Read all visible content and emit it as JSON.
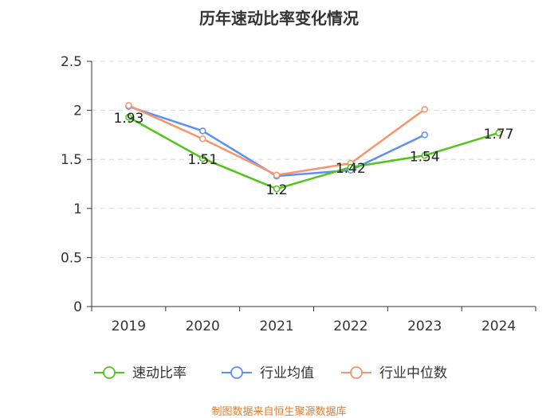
{
  "chart_data": {
    "type": "line",
    "title": "历年速动比率变化情况",
    "categories": [
      "2019",
      "2020",
      "2021",
      "2022",
      "2023",
      "2024"
    ],
    "ylim": [
      0,
      2.5
    ],
    "yticks": [
      "0",
      "0.5",
      "1",
      "1.5",
      "2",
      "2.5"
    ],
    "grid": true,
    "legend_position": "bottom",
    "series": [
      {
        "name": "速动比率",
        "color": "#52c41a",
        "values": [
          1.93,
          1.51,
          1.2,
          1.42,
          1.54,
          1.77
        ],
        "labels": [
          "1.93",
          "1.51",
          "1.2",
          "1.42",
          "1.54",
          "1.77"
        ]
      },
      {
        "name": "行业均值",
        "color": "#5b8ff9",
        "values": [
          2.04,
          1.79,
          1.33,
          1.39,
          1.75,
          null
        ]
      },
      {
        "name": "行业中位数",
        "color": "#f6956b",
        "values": [
          2.05,
          1.71,
          1.34,
          1.46,
          2.01,
          null
        ]
      }
    ],
    "source": "制图数据来自恒生聚源数据库"
  }
}
